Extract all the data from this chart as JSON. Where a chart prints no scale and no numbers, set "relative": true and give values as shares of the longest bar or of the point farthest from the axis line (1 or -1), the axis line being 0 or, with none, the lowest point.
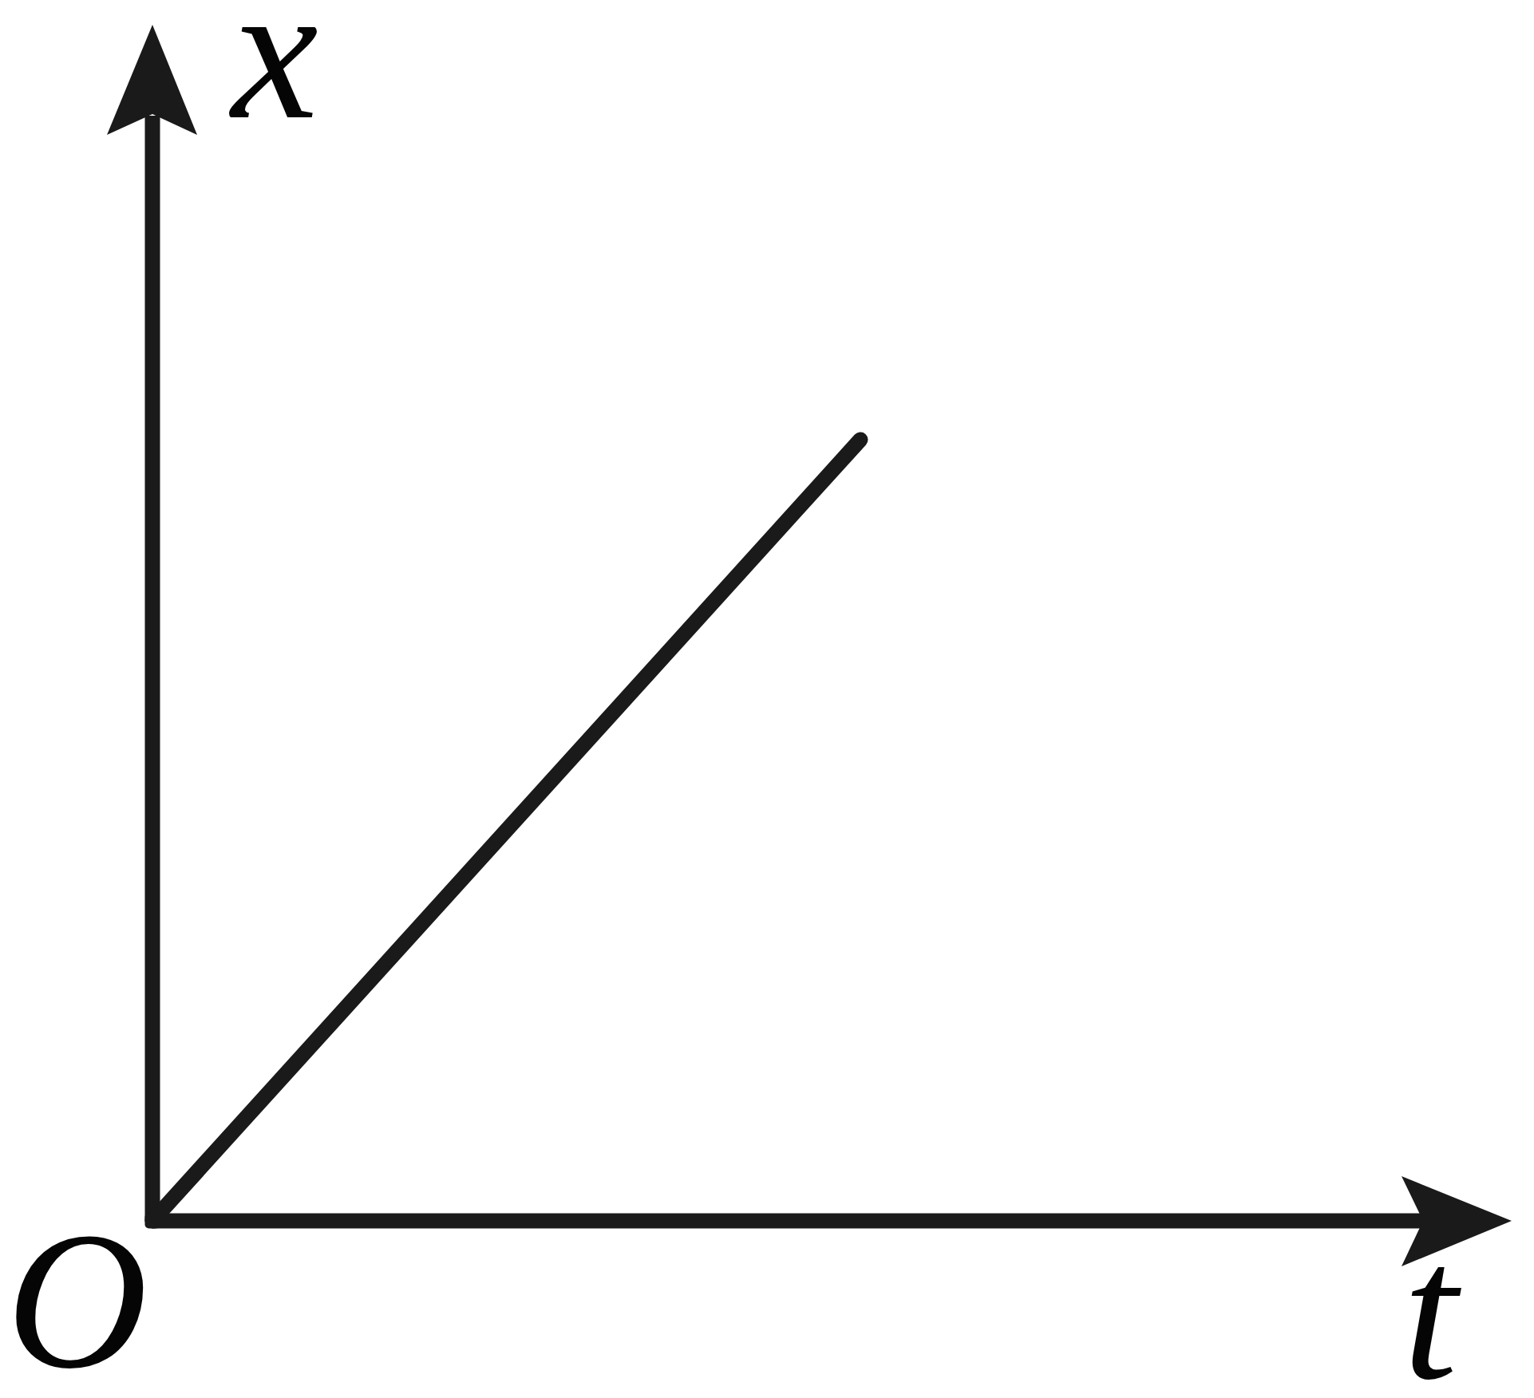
{
  "chart_data": {
    "type": "line",
    "xlabel": "t",
    "ylabel": "x",
    "annotations": [
      "O"
    ],
    "categories": [
      null,
      null
    ],
    "relative": true,
    "color": "#1a1a1a",
    "values": [
      0,
      1
    ],
    "line_style": "solid"
  }
}
